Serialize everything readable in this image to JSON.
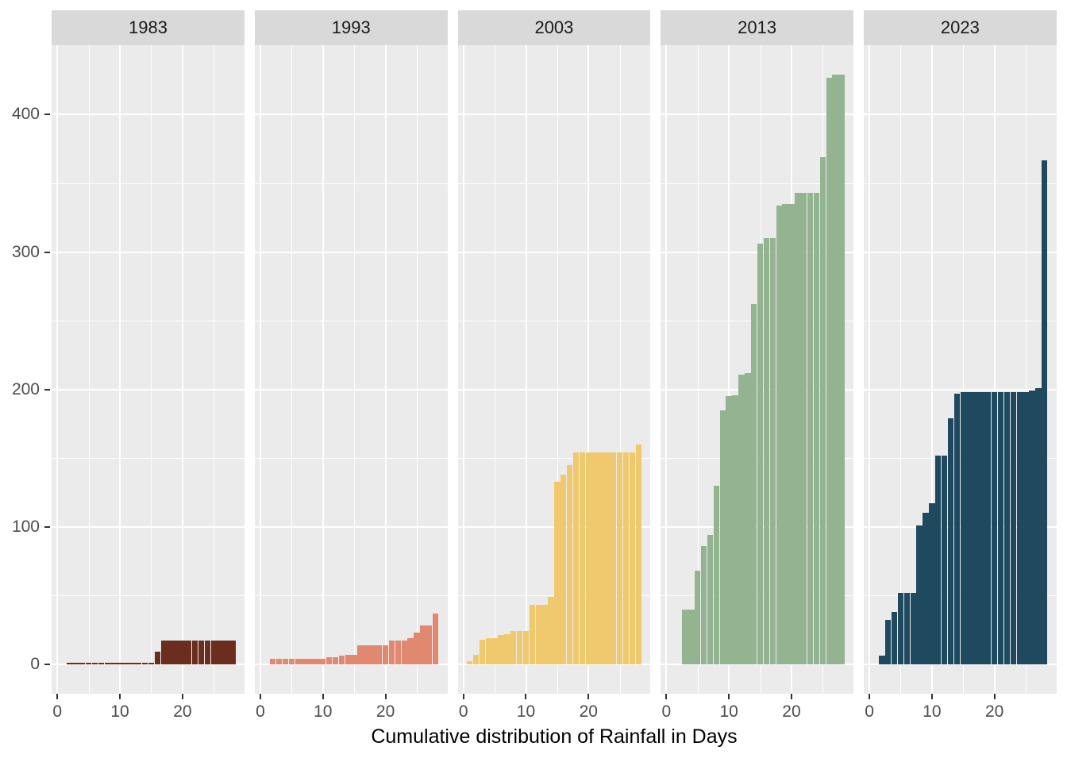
{
  "colors": {
    "panel_background": "#ebebeb",
    "strip_background": "#d9d9d9",
    "gridline": "#ffffff",
    "axis_text": "#4d4d4d",
    "strip_text": "#1a1a1a",
    "tick_mark": "#333333",
    "title_text": "#000000"
  },
  "chart_data": {
    "type": "bar",
    "faceted": true,
    "facet_variable": "year",
    "xlabel": "Cumulative distribution of Rainfall in Days",
    "ylabel": "",
    "grid": "on",
    "legend": "none",
    "x_range": [
      -0.9,
      29.9
    ],
    "y_range": [
      -21.5,
      450.5
    ],
    "x_ticks": [
      0,
      10,
      20
    ],
    "y_ticks": [
      0,
      100,
      200,
      300,
      400
    ],
    "x_minor_gridlines": [
      5,
      15,
      25
    ],
    "y_minor_gridlines": [
      50,
      150,
      250,
      350
    ],
    "bar_width_days": 1,
    "facets": [
      {
        "label": "1983",
        "color": "#6b2d1e",
        "bars": [
          [
            2,
            1
          ],
          [
            3,
            1
          ],
          [
            4,
            1
          ],
          [
            5,
            1
          ],
          [
            6,
            1
          ],
          [
            7,
            1
          ],
          [
            8,
            1
          ],
          [
            9,
            1
          ],
          [
            10,
            1
          ],
          [
            11,
            1
          ],
          [
            12,
            1
          ],
          [
            13,
            1
          ],
          [
            14,
            1
          ],
          [
            15,
            1
          ],
          [
            16,
            9
          ],
          [
            17,
            17
          ],
          [
            18,
            17
          ],
          [
            19,
            17
          ],
          [
            20,
            17
          ],
          [
            21,
            17
          ],
          [
            22,
            17
          ],
          [
            23,
            17
          ],
          [
            24,
            17
          ],
          [
            25,
            17
          ],
          [
            26,
            17
          ],
          [
            27,
            17
          ],
          [
            28,
            17
          ]
        ]
      },
      {
        "label": "1993",
        "color": "#e08870",
        "bars": [
          [
            2,
            4
          ],
          [
            3,
            4
          ],
          [
            4,
            4
          ],
          [
            5,
            4
          ],
          [
            6,
            4
          ],
          [
            7,
            4
          ],
          [
            8,
            4
          ],
          [
            9,
            4
          ],
          [
            10,
            4
          ],
          [
            11,
            5
          ],
          [
            12,
            5
          ],
          [
            13,
            6
          ],
          [
            14,
            7
          ],
          [
            15,
            7
          ],
          [
            16,
            14
          ],
          [
            17,
            14
          ],
          [
            18,
            14
          ],
          [
            19,
            14
          ],
          [
            20,
            14
          ],
          [
            21,
            17
          ],
          [
            22,
            17
          ],
          [
            23,
            17
          ],
          [
            24,
            19
          ],
          [
            25,
            23
          ],
          [
            26,
            28
          ],
          [
            27,
            28
          ],
          [
            28,
            37
          ]
        ]
      },
      {
        "label": "2003",
        "color": "#f0c96e",
        "bars": [
          [
            1,
            2
          ],
          [
            2,
            7
          ],
          [
            3,
            18
          ],
          [
            4,
            19
          ],
          [
            5,
            19
          ],
          [
            6,
            21
          ],
          [
            7,
            22
          ],
          [
            8,
            24
          ],
          [
            9,
            24
          ],
          [
            10,
            24
          ],
          [
            11,
            43
          ],
          [
            12,
            43
          ],
          [
            13,
            43
          ],
          [
            14,
            49
          ],
          [
            15,
            133
          ],
          [
            16,
            138
          ],
          [
            17,
            145
          ],
          [
            18,
            154
          ],
          [
            19,
            154
          ],
          [
            20,
            154
          ],
          [
            21,
            154
          ],
          [
            22,
            154
          ],
          [
            23,
            154
          ],
          [
            24,
            154
          ],
          [
            25,
            154
          ],
          [
            26,
            154
          ],
          [
            27,
            154
          ],
          [
            28,
            160
          ]
        ]
      },
      {
        "label": "2013",
        "color": "#94b491",
        "bars": [
          [
            3,
            40
          ],
          [
            4,
            40
          ],
          [
            5,
            68
          ],
          [
            6,
            86
          ],
          [
            7,
            94
          ],
          [
            8,
            130
          ],
          [
            9,
            185
          ],
          [
            10,
            195
          ],
          [
            11,
            196
          ],
          [
            12,
            211
          ],
          [
            13,
            212
          ],
          [
            14,
            262
          ],
          [
            15,
            306
          ],
          [
            16,
            310
          ],
          [
            17,
            310
          ],
          [
            18,
            334
          ],
          [
            19,
            335
          ],
          [
            20,
            335
          ],
          [
            21,
            343
          ],
          [
            22,
            343
          ],
          [
            23,
            343
          ],
          [
            24,
            343
          ],
          [
            25,
            369
          ],
          [
            26,
            427
          ],
          [
            27,
            429
          ],
          [
            28,
            429
          ]
        ]
      },
      {
        "label": "2023",
        "color": "#1f495e",
        "bars": [
          [
            2,
            6
          ],
          [
            3,
            32
          ],
          [
            4,
            38
          ],
          [
            5,
            52
          ],
          [
            6,
            52
          ],
          [
            7,
            52
          ],
          [
            8,
            101
          ],
          [
            9,
            110
          ],
          [
            10,
            117
          ],
          [
            11,
            152
          ],
          [
            12,
            152
          ],
          [
            13,
            179
          ],
          [
            14,
            197
          ],
          [
            15,
            198
          ],
          [
            16,
            198
          ],
          [
            17,
            198
          ],
          [
            18,
            198
          ],
          [
            19,
            198
          ],
          [
            20,
            198
          ],
          [
            21,
            198
          ],
          [
            22,
            198
          ],
          [
            23,
            198
          ],
          [
            24,
            198
          ],
          [
            25,
            198
          ],
          [
            26,
            199
          ],
          [
            27,
            201
          ],
          [
            28,
            367
          ]
        ]
      }
    ]
  }
}
